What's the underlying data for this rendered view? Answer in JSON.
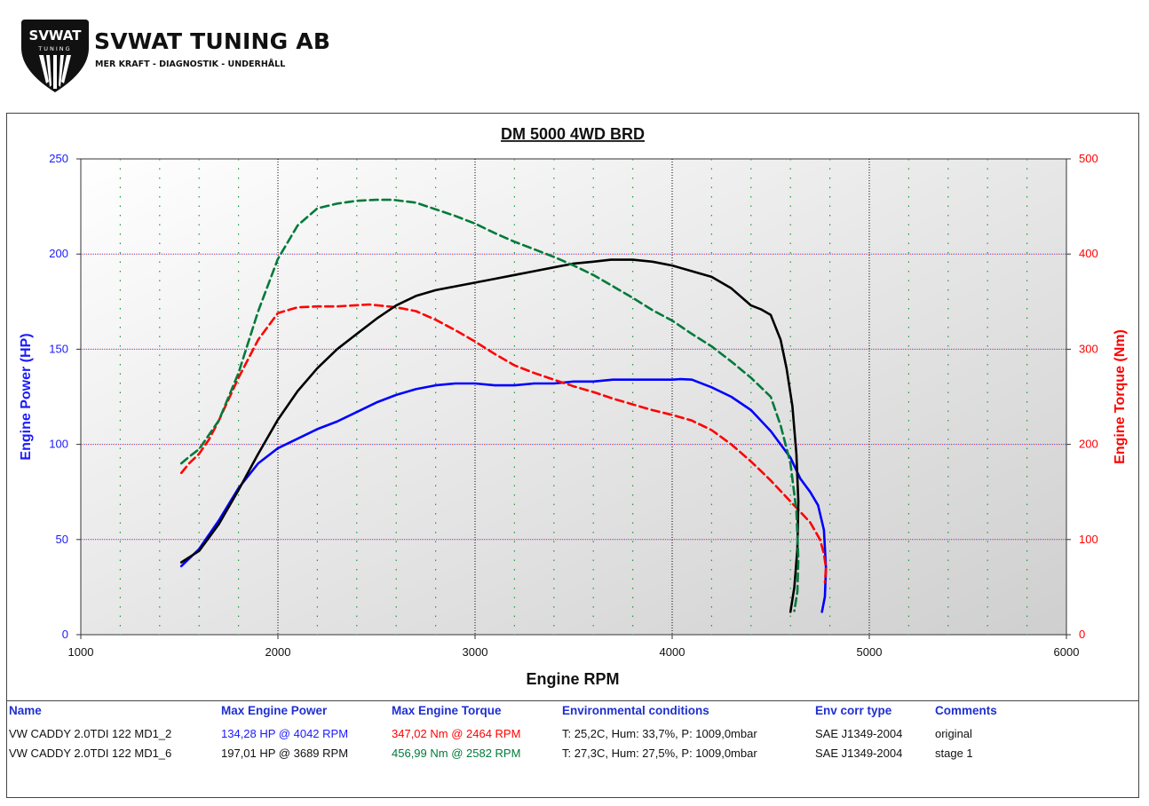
{
  "brand": {
    "shield_text": "SVWAT",
    "shield_sub": "TUNING",
    "name": "SVWAT TUNING AB",
    "tagline": "MER KRAFT - DIAGNOSTIK - UNDERHÅLL"
  },
  "colors": {
    "power_axis": "#1a1aff",
    "torque_axis": "#ff0000",
    "original_power": "#0000ff",
    "original_torque": "#ff0000",
    "stage1_power": "#000000",
    "stage1_torque": "#007a3a",
    "header_text": "#1f2fd0"
  },
  "chart_data": {
    "type": "line",
    "title": "DM 5000 4WD BRD",
    "xlabel": "Engine RPM",
    "ylabel": "Engine Power (HP)",
    "y2label": "Engine Torque (Nm)",
    "xlim": [
      1000,
      6000
    ],
    "ylim": [
      0,
      250
    ],
    "y2lim": [
      0,
      500
    ],
    "xticks": [
      "1000",
      "2000",
      "3000",
      "4000",
      "5000",
      "6000"
    ],
    "yticks": [
      "0",
      "50",
      "100",
      "150",
      "200",
      "250"
    ],
    "y2ticks": [
      "0",
      "100",
      "200",
      "300",
      "400",
      "500"
    ],
    "grid": true,
    "series": [
      {
        "name": "VW CADDY 2.0TDI 122 MD1_2",
        "quantity": "power",
        "axis": "left",
        "color": "#0000ff",
        "dashed": false,
        "x": [
          1510,
          1600,
          1700,
          1800,
          1900,
          2000,
          2100,
          2200,
          2300,
          2400,
          2500,
          2600,
          2700,
          2800,
          2900,
          3000,
          3100,
          3200,
          3300,
          3400,
          3500,
          3600,
          3700,
          3800,
          3900,
          4000,
          4042,
          4100,
          4200,
          4300,
          4400,
          4500,
          4600,
          4650,
          4700,
          4740,
          4770,
          4780,
          4775,
          4760
        ],
        "y": [
          36,
          45,
          60,
          77,
          90,
          98,
          103,
          108,
          112,
          117,
          122,
          126,
          129,
          131,
          132,
          132,
          131,
          131,
          132,
          132,
          133,
          133,
          134,
          134,
          134,
          134,
          134.3,
          134,
          130,
          125,
          118,
          107,
          93,
          82,
          75,
          68,
          55,
          35,
          20,
          12
        ]
      },
      {
        "name": "VW CADDY 2.0TDI 122 MD1_2",
        "quantity": "torque",
        "axis": "right",
        "color": "#ff0000",
        "dashed": true,
        "x": [
          1510,
          1550,
          1600,
          1650,
          1700,
          1800,
          1900,
          2000,
          2100,
          2200,
          2300,
          2464,
          2600,
          2700,
          2800,
          2900,
          3000,
          3100,
          3200,
          3300,
          3400,
          3500,
          3600,
          3700,
          3800,
          3900,
          4000,
          4100,
          4200,
          4300,
          4400,
          4500,
          4600,
          4700,
          4750,
          4770,
          4780,
          4775
        ],
        "y": [
          170,
          180,
          190,
          205,
          225,
          270,
          310,
          338,
          344,
          345,
          345,
          347,
          344,
          340,
          331,
          320,
          308,
          295,
          283,
          275,
          268,
          261,
          255,
          248,
          242,
          236,
          231,
          225,
          215,
          200,
          182,
          162,
          140,
          118,
          100,
          85,
          70,
          55
        ]
      },
      {
        "name": "VW CADDY 2.0TDI 122 MD1_6",
        "quantity": "power",
        "axis": "left",
        "color": "#000000",
        "dashed": false,
        "x": [
          1510,
          1600,
          1700,
          1800,
          1900,
          2000,
          2100,
          2200,
          2300,
          2400,
          2500,
          2600,
          2700,
          2800,
          2900,
          3000,
          3100,
          3200,
          3300,
          3400,
          3500,
          3600,
          3689,
          3800,
          3900,
          4000,
          4100,
          4200,
          4300,
          4400,
          4450,
          4500,
          4550,
          4580,
          4610,
          4630,
          4640,
          4635,
          4620,
          4600
        ],
        "y": [
          38,
          44,
          58,
          76,
          95,
          113,
          128,
          140,
          150,
          158,
          166,
          173,
          178,
          181,
          183,
          185,
          187,
          189,
          191,
          193,
          195,
          196,
          197,
          197,
          196,
          194,
          191,
          188,
          182,
          173,
          171,
          168,
          155,
          140,
          120,
          95,
          70,
          45,
          25,
          12
        ]
      },
      {
        "name": "VW CADDY 2.0TDI 122 MD1_6",
        "quantity": "torque",
        "axis": "right",
        "color": "#007a3a",
        "dashed": true,
        "x": [
          1510,
          1550,
          1600,
          1700,
          1800,
          1900,
          2000,
          2100,
          2200,
          2300,
          2400,
          2500,
          2582,
          2700,
          2800,
          2900,
          3000,
          3100,
          3200,
          3300,
          3400,
          3500,
          3600,
          3700,
          3800,
          3900,
          4000,
          4100,
          4200,
          4300,
          4400,
          4500,
          4550,
          4600,
          4630,
          4640,
          4635,
          4620
        ],
        "y": [
          180,
          187,
          195,
          225,
          275,
          340,
          395,
          430,
          448,
          453,
          456,
          457,
          457,
          454,
          447,
          440,
          432,
          422,
          413,
          405,
          397,
          388,
          378,
          366,
          354,
          341,
          330,
          316,
          303,
          287,
          270,
          250,
          220,
          180,
          130,
          80,
          45,
          25
        ]
      }
    ]
  },
  "results_table": {
    "headers": [
      "Name",
      "Max Engine Power",
      "Max Engine Torque",
      "Environmental conditions",
      "Env corr type",
      "Comments"
    ],
    "rows": [
      {
        "name": "VW CADDY 2.0TDI 122 MD1_2",
        "power": "134,28 HP @ 4042 RPM",
        "torque": "347,02 Nm @ 2464 RPM",
        "env": "T: 25,2C, Hum: 33,7%, P: 1009,0mbar",
        "corr": "SAE J1349-2004",
        "comment": "original",
        "power_color": "#1a1aff",
        "torque_color": "#ff0000"
      },
      {
        "name": "VW CADDY 2.0TDI 122 MD1_6",
        "power": "197,01 HP @ 3689 RPM",
        "torque": "456,99 Nm @ 2582 RPM",
        "env": "T: 27,3C, Hum: 27,5%, P: 1009,0mbar",
        "corr": "SAE J1349-2004",
        "comment": "stage 1",
        "power_color": "#000000",
        "torque_color": "#007a3a"
      }
    ]
  }
}
